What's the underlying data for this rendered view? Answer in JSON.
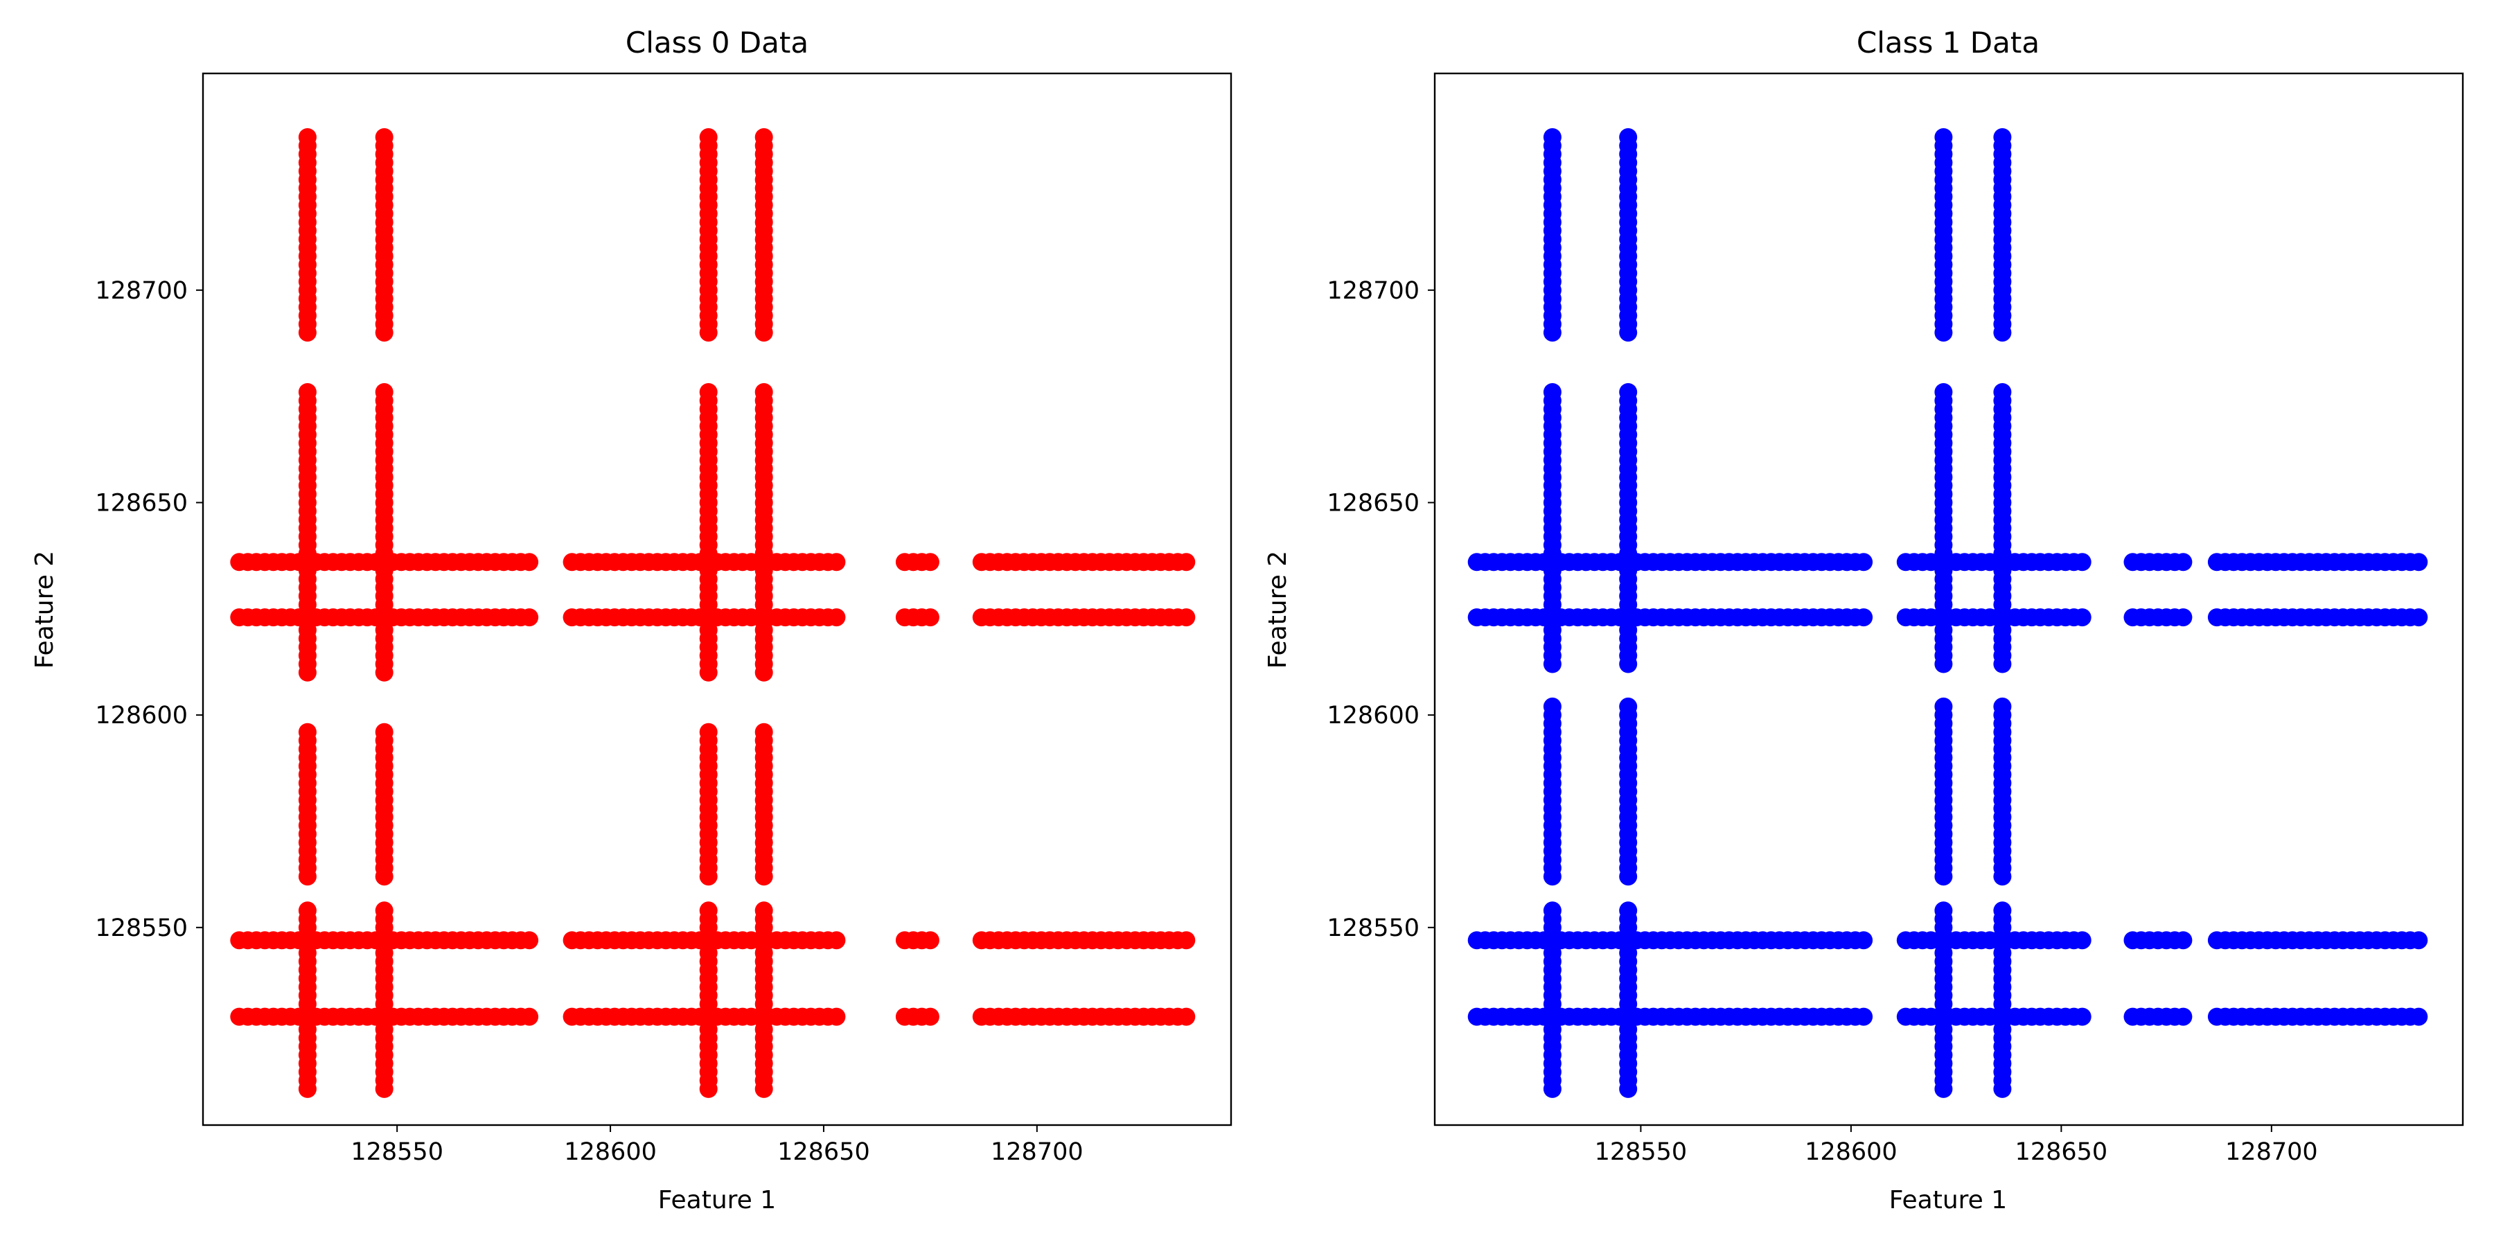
{
  "chart_data": [
    {
      "type": "scatter",
      "title": "Class 0 Data",
      "xlabel": "Feature 1",
      "ylabel": "Feature 2",
      "xlim": [
        128504.5,
        128745.5
      ],
      "ylim": [
        128503.5,
        128751
      ],
      "xticks": [
        128550,
        128600,
        128650,
        128700
      ],
      "yticks": [
        128550,
        128600,
        128650,
        128700
      ],
      "grid": false,
      "color": "#ff0000",
      "series": [
        {
          "values": {
            "x_columns": [
              128529,
              128547,
              128623,
              128636
            ],
            "y_range": [
              128512,
              128736
            ],
            "y_rows": [
              128529,
              128547,
              128623,
              128636
            ],
            "x_range": [
              128513,
              128736
            ],
            "y_gaps": [
              [
                128678,
                128688
              ],
              [
                128597,
                128608
              ],
              [
                128556,
                128560
              ]
            ],
            "x_gaps": [
              [
                128582,
                128590
              ],
              [
                128655,
                128667
              ],
              [
                128677,
                128686
              ]
            ]
          }
        }
      ]
    },
    {
      "type": "scatter",
      "title": "Class 1 Data",
      "xlabel": "Feature 1",
      "ylabel": "Feature 2",
      "xlim": [
        128501,
        128745.5
      ],
      "ylim": [
        128503.5,
        128751
      ],
      "xticks": [
        128550,
        128600,
        128650,
        128700
      ],
      "yticks": [
        128550,
        128600,
        128650,
        128700
      ],
      "grid": false,
      "color": "#0000ff",
      "series": [
        {
          "values": {
            "x_columns": [
              128529,
              128547,
              128622,
              128636
            ],
            "y_range": [
              128512,
              128736
            ],
            "y_rows": [
              128529,
              128547,
              128623,
              128636
            ],
            "x_range": [
              128511,
              128735
            ],
            "y_gaps": [
              [
                128678,
                128688
              ],
              [
                128603,
                128610
              ],
              [
                128556,
                128560
              ]
            ],
            "x_gaps": [
              [
                128604,
                128612
              ],
              [
                128656,
                128665
              ],
              [
                128680,
                128686
              ]
            ]
          }
        }
      ]
    }
  ]
}
